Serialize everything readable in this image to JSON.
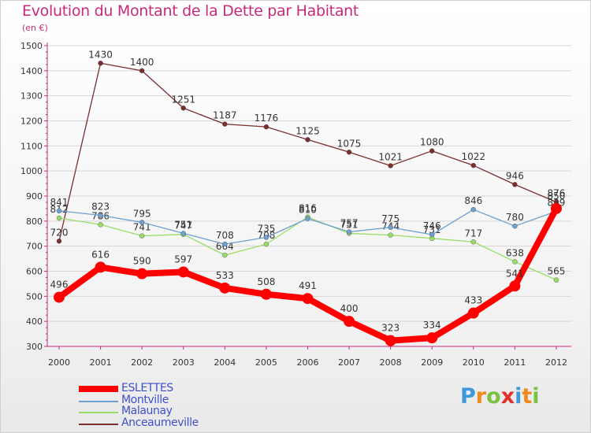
{
  "header": {
    "title": "Evolution du Montant de la Dette par Habitant",
    "subtitle": "(en €)"
  },
  "logo": {
    "letters": [
      "P",
      "r",
      "o",
      "x",
      "i",
      "t",
      "i"
    ]
  },
  "chart_data": {
    "type": "line",
    "title": "Evolution du Montant de la Dette par Habitant",
    "subtitle": "(en €)",
    "xlabel": "",
    "ylabel": "",
    "categories": [
      "2000",
      "2001",
      "2002",
      "2003",
      "2004",
      "2005",
      "2006",
      "2007",
      "2008",
      "2009",
      "2010",
      "2011",
      "2012"
    ],
    "ylim": [
      300,
      1500
    ],
    "yticks": [
      300,
      400,
      500,
      600,
      700,
      800,
      900,
      1000,
      1100,
      1200,
      1300,
      1400,
      1500
    ],
    "grid": "horizontal",
    "legend_position": "bottom-left",
    "series": [
      {
        "name": "ESLETTES",
        "color": "#ff0000",
        "emphasis": true,
        "values": [
          496,
          616,
          590,
          597,
          533,
          508,
          491,
          400,
          323,
          334,
          433,
          541,
          850
        ],
        "labels": [
          "496",
          "616",
          "590",
          "597",
          "533",
          "508",
          "491",
          "400",
          "323",
          "334",
          "433",
          "541",
          "850"
        ]
      },
      {
        "name": "Montville",
        "color": "#6fa0d0",
        "values": [
          841,
          823,
          795,
          751,
          708,
          735,
          810,
          757,
          775,
          746,
          846,
          780,
          839
        ],
        "labels": [
          "841",
          "823",
          "795",
          "751",
          "708",
          "735",
          "810",
          "757",
          "775",
          "746",
          "846",
          "780",
          "839"
        ]
      },
      {
        "name": "Malaunay",
        "color": "#99dd66",
        "values": [
          812,
          786,
          741,
          747,
          664,
          708,
          816,
          751,
          744,
          731,
          717,
          638,
          565
        ],
        "labels": [
          "812",
          "786",
          "741",
          "747",
          "664",
          "708",
          "816",
          "751",
          "744",
          "731",
          "717",
          "638",
          "565"
        ]
      },
      {
        "name": "Anceaumeville",
        "color": "#7a2e2e",
        "values": [
          720,
          1430,
          1400,
          1251,
          1187,
          1176,
          1125,
          1075,
          1021,
          1080,
          1022,
          946,
          876
        ],
        "labels": [
          "720",
          "1430",
          "1400",
          "1251",
          "1187",
          "1176",
          "1125",
          "1075",
          "1021",
          "1080",
          "1022",
          "946",
          "876"
        ]
      }
    ]
  }
}
